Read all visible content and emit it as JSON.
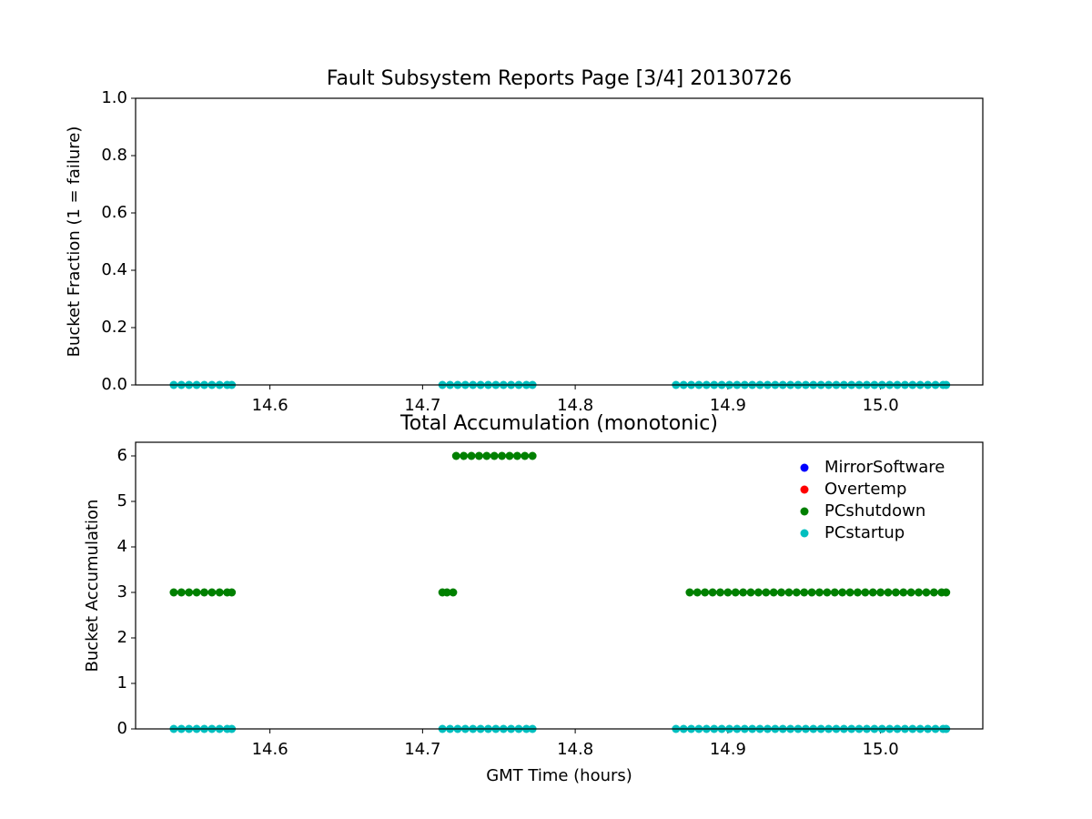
{
  "chart_data": [
    {
      "type": "scatter",
      "title": "Fault Subsystem Reports Page [3/4] 20130726",
      "y_label": "Bucket Fraction (1 = failure)",
      "xlim": [
        14.512,
        15.067
      ],
      "ylim": [
        0,
        1
      ],
      "xticks": [
        14.6,
        14.7,
        14.8,
        14.9,
        {
          "value": 15,
          "label": "15.0"
        }
      ],
      "yticks": [
        {
          "value": 0,
          "label": "0.0"
        },
        {
          "value": 0.2,
          "label": "0.2"
        },
        {
          "value": 0.4,
          "label": "0.4"
        },
        {
          "value": 0.6,
          "label": "0.6"
        },
        {
          "value": 0.8,
          "label": "0.8"
        },
        {
          "value": 1,
          "label": "1.0"
        }
      ],
      "legend": false,
      "series": [
        {
          "name": "PCstartup",
          "color": "#00bfbf",
          "x": [
            14.537,
            14.542,
            14.547,
            14.552,
            14.557,
            14.562,
            14.567,
            14.572,
            14.575,
            14.713,
            14.718,
            14.723,
            14.728,
            14.733,
            14.738,
            14.743,
            14.748,
            14.753,
            14.758,
            14.763,
            14.768,
            14.772,
            14.866,
            14.871,
            14.876,
            14.881,
            14.886,
            14.891,
            14.896,
            14.901,
            14.906,
            14.911,
            14.916,
            14.921,
            14.926,
            14.931,
            14.936,
            14.941,
            14.946,
            14.951,
            14.956,
            14.961,
            14.966,
            14.971,
            14.976,
            14.981,
            14.986,
            14.991,
            14.996,
            15.001,
            15.006,
            15.011,
            15.016,
            15.021,
            15.026,
            15.031,
            15.036,
            15.041,
            15.043
          ],
          "values": [
            0,
            0,
            0,
            0,
            0,
            0,
            0,
            0,
            0,
            0,
            0,
            0,
            0,
            0,
            0,
            0,
            0,
            0,
            0,
            0,
            0,
            0,
            0,
            0,
            0,
            0,
            0,
            0,
            0,
            0,
            0,
            0,
            0,
            0,
            0,
            0,
            0,
            0,
            0,
            0,
            0,
            0,
            0,
            0,
            0,
            0,
            0,
            0,
            0,
            0,
            0,
            0,
            0,
            0,
            0,
            0,
            0,
            0,
            0
          ]
        }
      ]
    },
    {
      "type": "scatter",
      "title": "Total Accumulation (monotonic)",
      "x_label": "GMT Time (hours)",
      "y_label": "Bucket Accumulation",
      "xlim": [
        14.512,
        15.067
      ],
      "ylim": [
        0,
        6.3
      ],
      "xticks": [
        14.6,
        14.7,
        14.8,
        14.9,
        {
          "value": 15,
          "label": "15.0"
        }
      ],
      "yticks": [
        0,
        1,
        2,
        3,
        4,
        5,
        6
      ],
      "legend": "upper right",
      "series": [
        {
          "name": "MirrorSoftware",
          "color": "#0000ff",
          "x": [],
          "values": []
        },
        {
          "name": "Overtemp",
          "color": "#ff0000",
          "x": [],
          "values": []
        },
        {
          "name": "PCshutdown",
          "color": "#008000",
          "x": [
            14.537,
            14.542,
            14.547,
            14.552,
            14.557,
            14.562,
            14.567,
            14.572,
            14.575,
            14.713,
            14.716,
            14.72,
            14.722,
            14.727,
            14.732,
            14.737,
            14.742,
            14.747,
            14.752,
            14.757,
            14.762,
            14.767,
            14.772,
            14.875,
            14.88,
            14.885,
            14.89,
            14.895,
            14.9,
            14.905,
            14.91,
            14.915,
            14.92,
            14.925,
            14.93,
            14.935,
            14.94,
            14.945,
            14.95,
            14.955,
            14.96,
            14.965,
            14.97,
            14.975,
            14.98,
            14.985,
            14.99,
            14.995,
            15,
            15.005,
            15.01,
            15.015,
            15.02,
            15.025,
            15.03,
            15.035,
            15.04,
            15.043
          ],
          "values": [
            3,
            3,
            3,
            3,
            3,
            3,
            3,
            3,
            3,
            3,
            3,
            3,
            6,
            6,
            6,
            6,
            6,
            6,
            6,
            6,
            6,
            6,
            6,
            3,
            3,
            3,
            3,
            3,
            3,
            3,
            3,
            3,
            3,
            3,
            3,
            3,
            3,
            3,
            3,
            3,
            3,
            3,
            3,
            3,
            3,
            3,
            3,
            3,
            3,
            3,
            3,
            3,
            3,
            3,
            3,
            3,
            3,
            3
          ]
        },
        {
          "name": "PCstartup",
          "color": "#00bfbf",
          "x": [
            14.537,
            14.542,
            14.547,
            14.552,
            14.557,
            14.562,
            14.567,
            14.572,
            14.575,
            14.713,
            14.718,
            14.723,
            14.728,
            14.733,
            14.738,
            14.743,
            14.748,
            14.753,
            14.758,
            14.763,
            14.768,
            14.772,
            14.866,
            14.871,
            14.876,
            14.881,
            14.886,
            14.891,
            14.896,
            14.901,
            14.906,
            14.911,
            14.916,
            14.921,
            14.926,
            14.931,
            14.936,
            14.941,
            14.946,
            14.951,
            14.956,
            14.961,
            14.966,
            14.971,
            14.976,
            14.981,
            14.986,
            14.991,
            14.996,
            15.001,
            15.006,
            15.011,
            15.016,
            15.021,
            15.026,
            15.031,
            15.036,
            15.041,
            15.043
          ],
          "values": [
            0,
            0,
            0,
            0,
            0,
            0,
            0,
            0,
            0,
            0,
            0,
            0,
            0,
            0,
            0,
            0,
            0,
            0,
            0,
            0,
            0,
            0,
            0,
            0,
            0,
            0,
            0,
            0,
            0,
            0,
            0,
            0,
            0,
            0,
            0,
            0,
            0,
            0,
            0,
            0,
            0,
            0,
            0,
            0,
            0,
            0,
            0,
            0,
            0,
            0,
            0,
            0,
            0,
            0,
            0,
            0,
            0,
            0,
            0
          ]
        }
      ]
    }
  ]
}
